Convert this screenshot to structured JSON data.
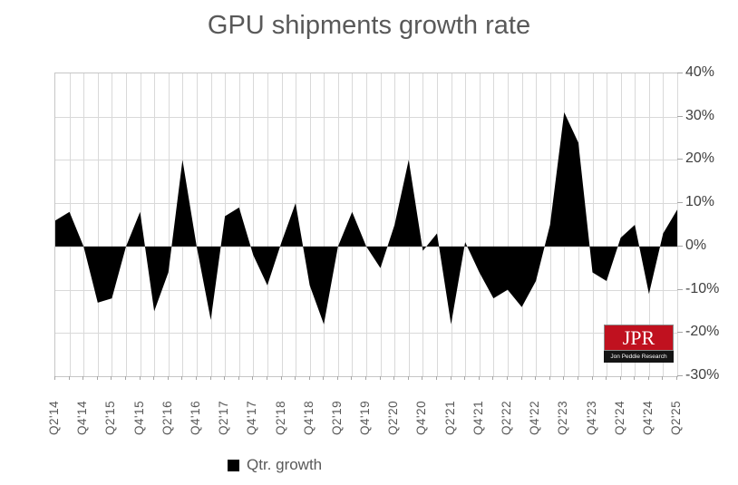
{
  "title": "GPU shipments growth rate",
  "legend": {
    "label": "Qtr. growth",
    "marker_color": "#000000"
  },
  "colors": {
    "area": "#000000",
    "grid": "#d9d9d9",
    "plot_border": "#c6c6c6",
    "tick": "#a6a6a6",
    "title_text": "#595959",
    "y_label_text": "#404040",
    "x_label_text": "#595959",
    "logo_red": "#c0111f",
    "logo_black": "#141414"
  },
  "y_axis": {
    "side": "right",
    "tick_labels": [
      "40%",
      "30%",
      "20%",
      "10%",
      "0%",
      "-10%",
      "-20%",
      "-30%"
    ],
    "tick_values": [
      40,
      30,
      20,
      10,
      0,
      -10,
      -20,
      -30
    ]
  },
  "x_axis": {
    "labeled_every": 2,
    "tick_labels": [
      "Q2'14",
      "Q4'14",
      "Q2'15",
      "Q4'15",
      "Q2'16",
      "Q4'16",
      "Q2'17",
      "Q4'17",
      "Q2'18",
      "Q4'18",
      "Q2'19",
      "Q4'19",
      "Q2'20",
      "Q4'20",
      "Q2'21",
      "Q4'21",
      "Q2'22",
      "Q4'22",
      "Q2'23",
      "Q4'23",
      "Q2'24",
      "Q4'24",
      "Q2'25"
    ]
  },
  "logo": {
    "text": "JPR",
    "subtext": "Jon Peddie Research"
  },
  "chart_data": {
    "type": "area",
    "title": "GPU shipments growth rate",
    "series_name": "Qtr. growth",
    "xlabel": "",
    "ylabel": "",
    "ylim": [
      -30,
      40
    ],
    "grid": true,
    "legend_position": "bottom",
    "categories": [
      "Q2'14",
      "Q3'14",
      "Q4'14",
      "Q1'15",
      "Q2'15",
      "Q3'15",
      "Q4'15",
      "Q1'16",
      "Q2'16",
      "Q3'16",
      "Q4'16",
      "Q1'17",
      "Q2'17",
      "Q3'17",
      "Q4'17",
      "Q1'18",
      "Q2'18",
      "Q3'18",
      "Q4'18",
      "Q1'19",
      "Q2'19",
      "Q3'19",
      "Q4'19",
      "Q1'20",
      "Q2'20",
      "Q3'20",
      "Q4'20",
      "Q1'21",
      "Q2'21",
      "Q3'21",
      "Q4'21",
      "Q1'22",
      "Q2'22",
      "Q3'22",
      "Q4'22",
      "Q1'23",
      "Q2'23",
      "Q3'23",
      "Q4'23",
      "Q1'24",
      "Q2'24",
      "Q3'24",
      "Q4'24",
      "Q1'25",
      "Q2'25"
    ],
    "values": [
      6,
      8,
      0,
      -13,
      -12,
      0,
      8,
      -15,
      -6,
      20,
      0,
      -17,
      7,
      9,
      -2,
      -9,
      1,
      10,
      -9,
      -18,
      0,
      8,
      0,
      -5,
      5,
      20,
      -1,
      3,
      -18,
      1,
      -6,
      -12,
      -10,
      -14,
      -8,
      5,
      31,
      24,
      -6,
      -8,
      2,
      5,
      -11,
      3,
      8.5
    ]
  }
}
